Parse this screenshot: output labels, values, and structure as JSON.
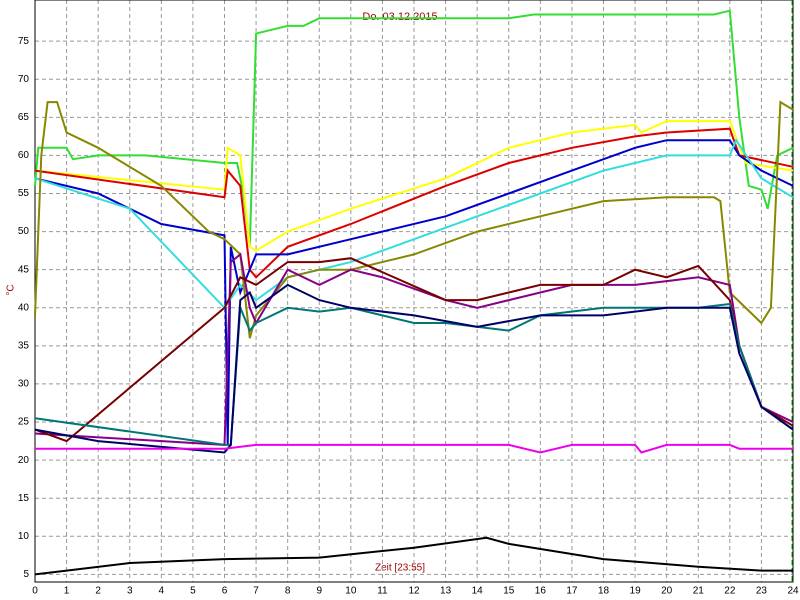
{
  "chart_data": {
    "type": "line",
    "title": "Do. 03.12.2015",
    "x_label": "Zeit [23:55]",
    "y_label": "°C",
    "xlim": [
      0,
      24
    ],
    "xticks": [
      0,
      1,
      2,
      3,
      4,
      5,
      6,
      7,
      8,
      9,
      10,
      11,
      12,
      13,
      14,
      15,
      16,
      17,
      18,
      19,
      20,
      21,
      22,
      23,
      24
    ],
    "ylim": [
      4,
      80.4
    ],
    "yticks": [
      5,
      10,
      15,
      20,
      25,
      30,
      35,
      40,
      45,
      50,
      55,
      60,
      65,
      70,
      75
    ],
    "grid": true,
    "series": [
      {
        "color": "#33dd33",
        "x": [
          0,
          0.1,
          1,
          1.2,
          2,
          3.5,
          6,
          6.4,
          6.6,
          6.8,
          7,
          7.5,
          8,
          8.5,
          9,
          10,
          13,
          15,
          15.8,
          16,
          19,
          21.5,
          22,
          22.3,
          22.6,
          23,
          23.2,
          23.5,
          24
        ],
        "values": [
          56,
          61,
          61,
          59.5,
          60,
          60,
          59,
          59,
          55,
          48,
          76,
          76.5,
          77,
          77,
          78,
          78,
          78,
          78,
          78.5,
          78.5,
          78.5,
          78.5,
          79,
          65,
          56,
          55.5,
          53,
          60,
          61
        ]
      },
      {
        "color": "#ffff00",
        "x": [
          0,
          6,
          6.1,
          6.5,
          6.8,
          7,
          8,
          10,
          13,
          15,
          17,
          19,
          19.2,
          20,
          22,
          22.5,
          24
        ],
        "values": [
          58,
          55.5,
          61,
          60,
          48,
          47.5,
          50,
          53,
          57,
          61,
          63,
          64,
          63,
          64.5,
          64.5,
          59,
          58
        ]
      },
      {
        "color": "#dd0000",
        "x": [
          0,
          6,
          6.1,
          6.5,
          6.8,
          7,
          8,
          10,
          13,
          15,
          17,
          19,
          20,
          22,
          22.3,
          24
        ],
        "values": [
          58,
          54.5,
          58,
          56,
          45,
          44,
          48,
          51,
          56,
          59,
          61,
          62.5,
          63,
          63.5,
          60,
          58.5
        ]
      },
      {
        "color": "#0000cc",
        "x": [
          0,
          2,
          4,
          6,
          6.1,
          6.2,
          6.5,
          7,
          8,
          10,
          13,
          15,
          17,
          19,
          20,
          22,
          22.3,
          23,
          24
        ],
        "values": [
          57,
          55,
          51,
          49.5,
          22,
          48,
          42,
          47,
          47,
          49,
          52,
          55,
          58,
          61,
          62,
          62,
          60,
          58,
          56
        ]
      },
      {
        "color": "#33dddd",
        "x": [
          0,
          3,
          6,
          6.5,
          7,
          8,
          10,
          12,
          14,
          16,
          18,
          20,
          22,
          22.2,
          23,
          24
        ],
        "values": [
          57,
          53,
          40,
          43,
          41,
          44,
          46,
          49,
          52,
          55,
          58,
          60,
          60,
          62,
          57,
          54.5
        ]
      },
      {
        "color": "#888800",
        "x": [
          0,
          0.2,
          0.4,
          0.7,
          1,
          2,
          4,
          5.5,
          6,
          6.5,
          6.8,
          7,
          8,
          9,
          10,
          12,
          14,
          16,
          18,
          20,
          21.5,
          21.7,
          22,
          23,
          23.3,
          23.6,
          24
        ],
        "values": [
          39,
          60,
          67,
          67,
          63,
          61,
          56,
          50,
          49,
          47,
          36,
          39,
          44,
          45,
          45,
          47,
          50,
          52,
          54,
          54.5,
          54.5,
          54,
          42,
          38,
          40,
          67,
          66
        ]
      },
      {
        "color": "#880088",
        "x": [
          0,
          6,
          6.2,
          6.5,
          6.8,
          7,
          8,
          9,
          10,
          11,
          13,
          14,
          16,
          17,
          19,
          20,
          21,
          22,
          22.3,
          23,
          24
        ],
        "values": [
          23.5,
          22,
          46,
          47,
          40,
          38,
          45,
          43,
          45,
          44,
          41,
          40,
          42,
          43,
          43,
          43.5,
          44,
          43,
          35,
          27,
          25
        ]
      },
      {
        "color": "#770000",
        "x": [
          0,
          1,
          6,
          6.5,
          7,
          8,
          9,
          10,
          13,
          14,
          16,
          18,
          19,
          20,
          21,
          22,
          22.3,
          23,
          24
        ],
        "values": [
          24,
          22.5,
          40,
          44,
          43,
          46,
          46,
          46.5,
          41,
          41,
          43,
          43,
          45,
          44,
          45.5,
          41,
          35,
          27,
          24.5
        ]
      },
      {
        "color": "#007777",
        "x": [
          0,
          6,
          6.2,
          6.5,
          6.8,
          7,
          8,
          9,
          10,
          11,
          12,
          13,
          15,
          16,
          18,
          20,
          21,
          22,
          22.3,
          23,
          24
        ],
        "values": [
          25.5,
          22,
          22,
          40,
          37,
          38,
          40,
          39.5,
          40,
          39,
          38,
          38,
          37,
          39,
          40,
          40,
          40,
          40.5,
          35,
          27,
          24
        ]
      },
      {
        "color": "#000066",
        "x": [
          0,
          2,
          6,
          6.2,
          6.5,
          6.8,
          7,
          8,
          9,
          10,
          12,
          14,
          16,
          18,
          20,
          22,
          22.3,
          23,
          24
        ],
        "values": [
          24,
          22.5,
          21,
          22,
          41,
          42,
          40,
          43,
          41,
          40,
          39,
          37.5,
          39,
          39,
          40,
          40,
          34,
          27,
          24
        ]
      },
      {
        "color": "#ee00ee",
        "x": [
          0,
          6,
          7,
          15,
          16,
          17,
          19,
          19.2,
          20,
          22,
          22.3,
          24
        ],
        "values": [
          21.5,
          21.5,
          22,
          22,
          21,
          22,
          22,
          21,
          22,
          22,
          21.5,
          21.5
        ]
      },
      {
        "color": "#000000",
        "x": [
          0,
          1,
          3,
          6,
          9,
          12,
          14.3,
          15,
          18,
          21,
          23,
          24
        ],
        "values": [
          5,
          5.5,
          6.5,
          7,
          7.2,
          8.5,
          9.8,
          9,
          7,
          6,
          5.5,
          5.5
        ]
      }
    ]
  }
}
